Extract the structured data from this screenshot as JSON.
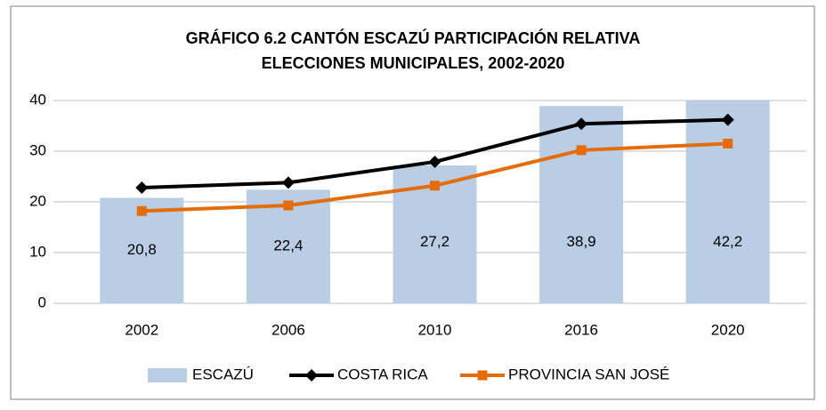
{
  "chart_data": {
    "type": "bar",
    "title": "GRÁFICO 6.2 CANTÓN ESCAZÚ PARTICIPACIÓN RELATIVA",
    "subtitle": "ELECCIONES MUNICIPALES, 2002-2020",
    "categories": [
      "2002",
      "2006",
      "2010",
      "2016",
      "2020"
    ],
    "series": [
      {
        "name": "ESCAZÚ",
        "type": "bar",
        "color": "#b9cde5",
        "values": [
          20.8,
          22.4,
          27.2,
          38.9,
          42.2
        ],
        "value_labels": [
          "20,8",
          "22,4",
          "27,2",
          "38,9",
          "42,2"
        ]
      },
      {
        "name": "COSTA RICA",
        "type": "line",
        "marker": "diamond",
        "color": "#000000",
        "values": [
          22.8,
          23.8,
          27.9,
          35.4,
          36.2
        ]
      },
      {
        "name": "PROVINCIA SAN JOSÉ",
        "type": "line",
        "marker": "square",
        "color": "#e46c0a",
        "values": [
          18.2,
          19.3,
          23.2,
          30.2,
          31.5
        ]
      }
    ],
    "ylim": [
      0,
      40
    ],
    "yticks": [
      0,
      10,
      20,
      30,
      40
    ],
    "grid": true,
    "legend": "bottom"
  }
}
